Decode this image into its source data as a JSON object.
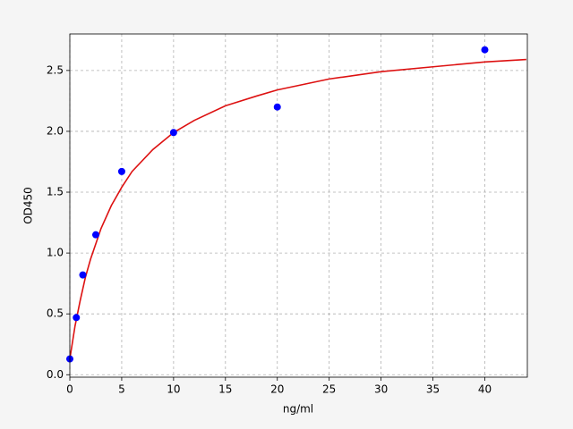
{
  "chart_data": {
    "type": "scatter",
    "xlabel": "ng/ml",
    "ylabel": "OD450",
    "xlim": [
      0,
      44.1
    ],
    "ylim": [
      -0.02,
      2.8
    ],
    "xticks": [
      0,
      5,
      10,
      15,
      20,
      25,
      30,
      35,
      40
    ],
    "yticks": [
      {
        "value": 0,
        "label": "0.0"
      },
      0.5,
      {
        "value": 1,
        "label": "1.0"
      },
      1.5,
      {
        "value": 2,
        "label": "2.0"
      },
      2.5
    ],
    "grid": true,
    "series": [
      {
        "color": "#0000ff",
        "style": "points",
        "x": [
          0,
          0.625,
          1.25,
          2.5,
          5,
          10,
          20,
          40
        ],
        "values": [
          0.13,
          0.47,
          0.82,
          1.15,
          1.67,
          1.99,
          2.2,
          2.67
        ]
      },
      {
        "color": "#dd1111",
        "style": "line",
        "x": [
          0,
          0.5,
          1,
          1.5,
          2,
          3,
          4,
          5,
          6,
          8,
          10,
          12,
          15,
          18,
          20,
          25,
          30,
          35,
          40,
          44
        ],
        "values": [
          0.13,
          0.4,
          0.61,
          0.8,
          0.95,
          1.2,
          1.39,
          1.54,
          1.67,
          1.85,
          1.99,
          2.09,
          2.21,
          2.29,
          2.34,
          2.43,
          2.49,
          2.53,
          2.57,
          2.59
        ]
      }
    ]
  }
}
